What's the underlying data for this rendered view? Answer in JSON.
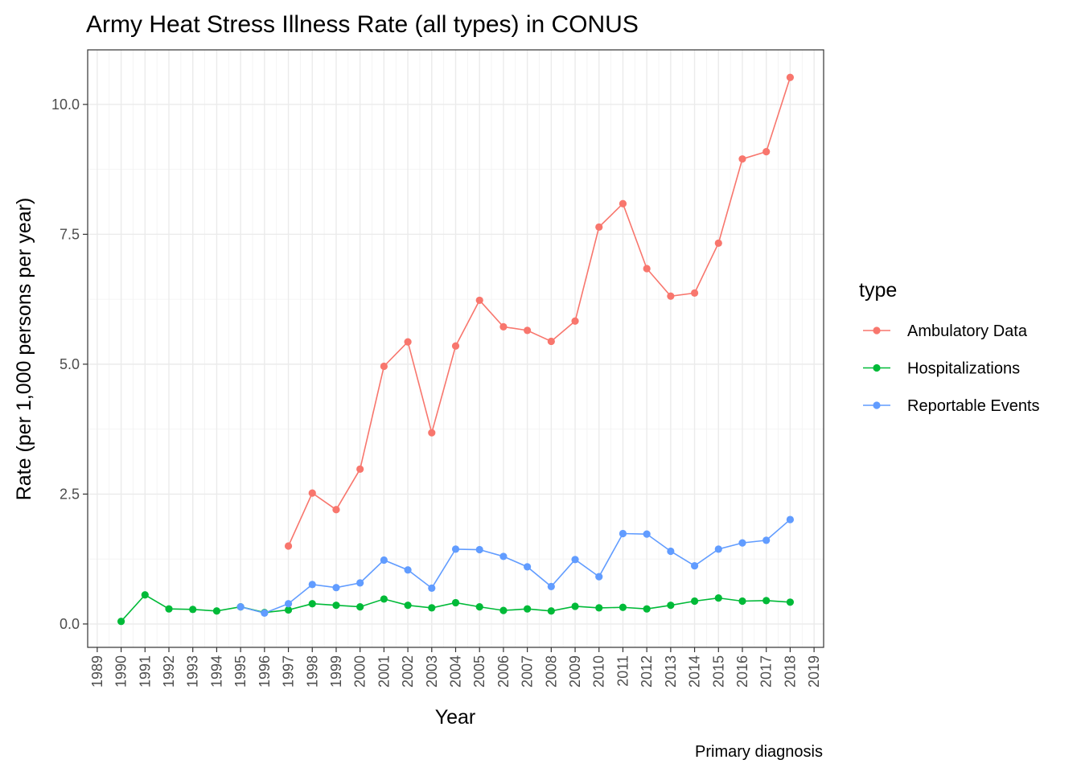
{
  "chart_data": {
    "type": "line",
    "title": "Army Heat Stress Illness Rate (all types) in CONUS",
    "xlabel": "Year",
    "ylabel": "Rate (per 1,000 persons per year)",
    "caption": "Primary diagnosis",
    "xlim": [
      1988.6,
      2019.4
    ],
    "ylim": [
      -0.45,
      11.05
    ],
    "x_ticks": [
      1989,
      1990,
      1991,
      1992,
      1993,
      1994,
      1995,
      1996,
      1997,
      1998,
      1999,
      2000,
      2001,
      2002,
      2003,
      2004,
      2005,
      2006,
      2007,
      2008,
      2009,
      2010,
      2011,
      2012,
      2013,
      2014,
      2015,
      2016,
      2017,
      2018,
      2019
    ],
    "y_ticks": [
      0,
      2.5,
      5,
      7.5,
      10
    ],
    "y_tick_labels": [
      "0.0",
      "2.5",
      "5.0",
      "7.5",
      "10.0"
    ],
    "grid": true,
    "legend": {
      "title": "type",
      "placement": "right"
    },
    "series": [
      {
        "name": "Ambulatory Data",
        "color": "#F8766D",
        "x": [
          1997,
          1998,
          1999,
          2000,
          2001,
          2002,
          2003,
          2004,
          2005,
          2006,
          2007,
          2008,
          2009,
          2010,
          2011,
          2012,
          2013,
          2014,
          2015,
          2016,
          2017,
          2018
        ],
        "y": [
          1.5,
          2.52,
          2.2,
          2.98,
          4.96,
          5.43,
          3.68,
          5.35,
          6.23,
          5.72,
          5.65,
          5.44,
          5.83,
          7.64,
          8.09,
          6.84,
          6.31,
          6.37,
          7.33,
          8.95,
          9.09,
          10.52
        ]
      },
      {
        "name": "Hospitalizations",
        "color": "#00BA38",
        "x": [
          1990,
          1991,
          1992,
          1993,
          1994,
          1995,
          1996,
          1997,
          1998,
          1999,
          2000,
          2001,
          2002,
          2003,
          2004,
          2005,
          2006,
          2007,
          2008,
          2009,
          2010,
          2011,
          2012,
          2013,
          2014,
          2015,
          2016,
          2017,
          2018
        ],
        "y": [
          0.05,
          0.56,
          0.29,
          0.28,
          0.25,
          0.33,
          0.22,
          0.27,
          0.39,
          0.36,
          0.33,
          0.48,
          0.36,
          0.31,
          0.41,
          0.33,
          0.26,
          0.29,
          0.25,
          0.34,
          0.31,
          0.32,
          0.29,
          0.36,
          0.44,
          0.5,
          0.44,
          0.45,
          0.42
        ]
      },
      {
        "name": "Reportable Events",
        "color": "#619CFF",
        "x": [
          1995,
          1996,
          1997,
          1998,
          1999,
          2000,
          2001,
          2002,
          2003,
          2004,
          2005,
          2006,
          2007,
          2008,
          2009,
          2010,
          2011,
          2012,
          2013,
          2014,
          2015,
          2016,
          2017,
          2018
        ],
        "y": [
          0.33,
          0.21,
          0.39,
          0.76,
          0.7,
          0.79,
          1.23,
          1.04,
          0.69,
          1.44,
          1.43,
          1.3,
          1.1,
          0.72,
          1.24,
          0.91,
          1.74,
          1.73,
          1.4,
          1.12,
          1.44,
          1.56,
          1.61,
          2.01
        ]
      }
    ]
  }
}
